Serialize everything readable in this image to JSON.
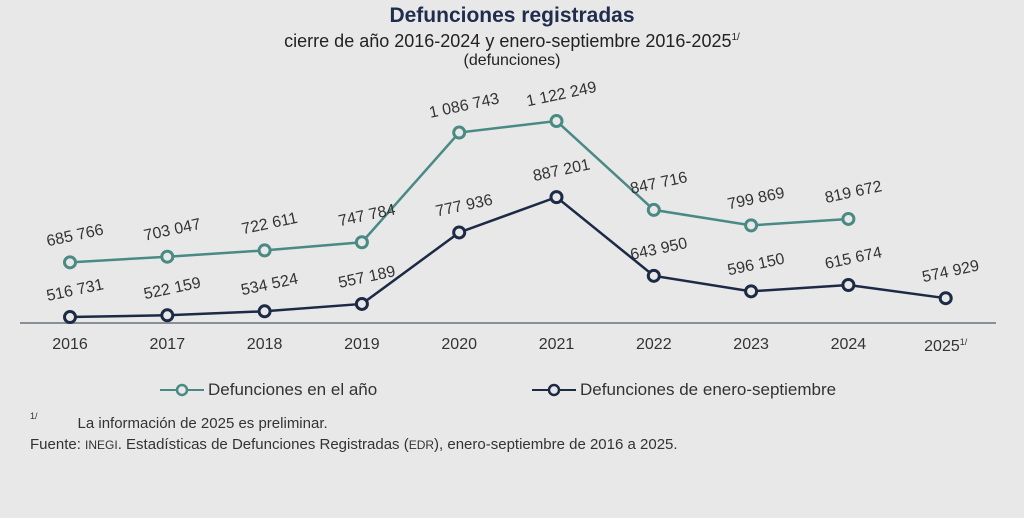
{
  "chart_data": {
    "type": "line",
    "title": "Defunciones registradas",
    "subtitle": "cierre de año 2016-2024 y enero-septiembre 2016-2025",
    "subtitle_sup": "1/",
    "units": "(defunciones)",
    "categories": [
      "2016",
      "2017",
      "2018",
      "2019",
      "2020",
      "2021",
      "2022",
      "2023",
      "2024",
      "2025"
    ],
    "category_sups": [
      "",
      "",
      "",
      "",
      "",
      "",
      "",
      "",
      "",
      "1/"
    ],
    "series": [
      {
        "name": "Defunciones en el año",
        "color": "#4a8a84",
        "values": [
          685766,
          703047,
          722611,
          747784,
          1086743,
          1122249,
          847716,
          799869,
          819672,
          null
        ],
        "labels": [
          "685 766",
          "703 047",
          "722 611",
          "747 784",
          "1 086 743",
          "1 122 249",
          "847 716",
          "799 869",
          "819 672",
          ""
        ]
      },
      {
        "name": "Defunciones de enero-septiembre",
        "color": "#1c2a45",
        "values": [
          516731,
          522159,
          534524,
          557189,
          777936,
          887201,
          643950,
          596150,
          615674,
          574929
        ],
        "labels": [
          "516 731",
          "522 159",
          "534 524",
          "557 189",
          "777 936",
          "887 201",
          "643 950",
          "596 150",
          "615 674",
          "574 929"
        ]
      }
    ],
    "xlabel": "",
    "ylabel": "",
    "grid": false,
    "legend_position": "bottom"
  },
  "footnote": {
    "marker": "1/",
    "text": "La información de 2025 es preliminar."
  },
  "source": {
    "label": "Fuente:",
    "org": "INEGI",
    "text1": ". Estadísticas de Defunciones Registradas (",
    "abbr": "EDR",
    "text2": "), enero-septiembre de 2016 a 2025."
  }
}
